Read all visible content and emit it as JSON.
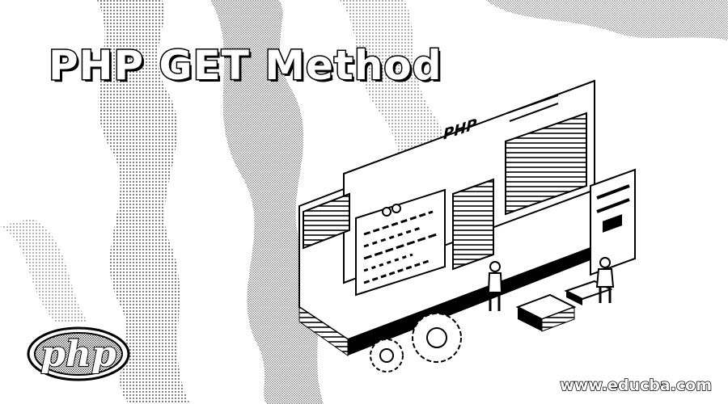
{
  "title": "PHP GET Method",
  "logo": {
    "text": "php"
  },
  "illustration": {
    "panel_label": "PHP"
  },
  "footer": {
    "website": "www.educba.com"
  },
  "colors": {
    "ink": "#000000",
    "paper": "#ffffff"
  },
  "icons": [
    "php-logo-icon",
    "gear-icon",
    "person-icon",
    "code-window-icon",
    "mobile-phone-icon"
  ]
}
